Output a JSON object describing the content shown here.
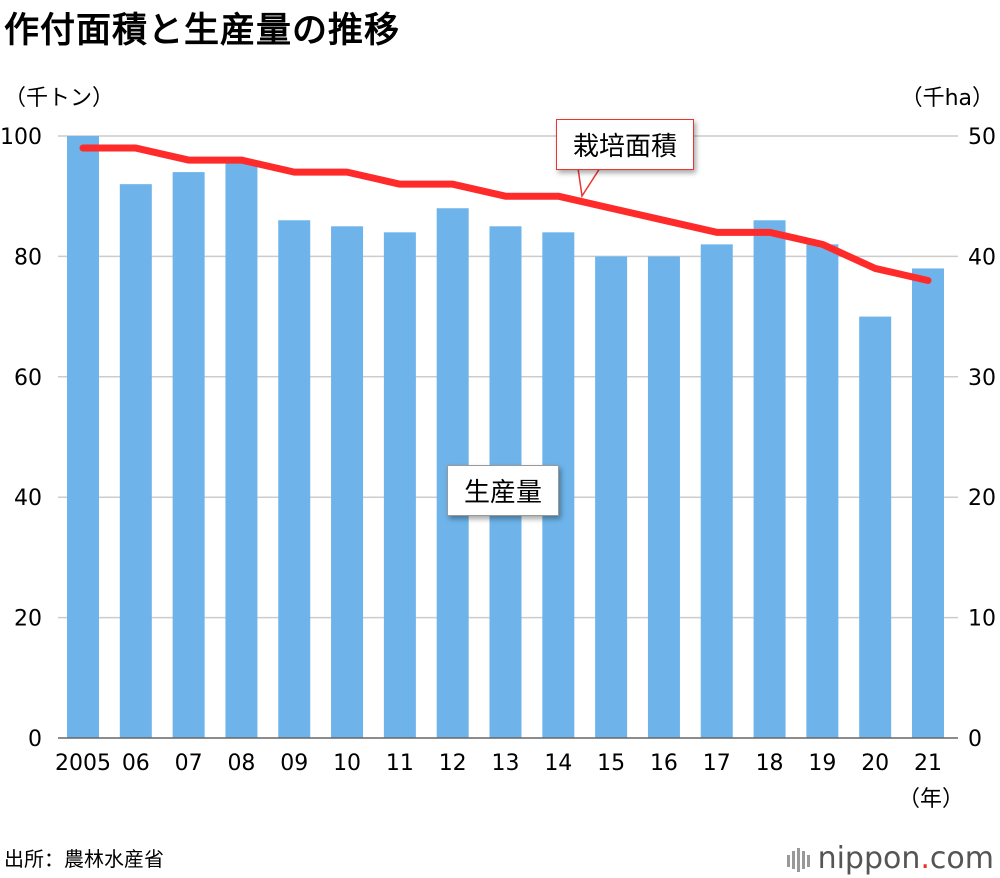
{
  "title": "作付面積と生産量の推移",
  "left_unit": "（千トン）",
  "right_unit": "（千ha）",
  "x_unit": "（年）",
  "source": "出所：農林水産省",
  "brand": {
    "name": "nippon",
    "dot": ".",
    "tld": "com"
  },
  "annotations": {
    "area": "栽培面積",
    "production": "生産量"
  },
  "colors": {
    "bar": "#6eb4ea",
    "line": "#ff2a2a",
    "grid": "#cccccc"
  },
  "chart_data": {
    "type": "bar+line",
    "categories": [
      "2005",
      "06",
      "07",
      "08",
      "09",
      "10",
      "11",
      "12",
      "13",
      "14",
      "15",
      "16",
      "17",
      "18",
      "19",
      "20",
      "21"
    ],
    "series": [
      {
        "name": "生産量",
        "axis": "left",
        "type": "bar",
        "values": [
          100,
          92,
          94,
          96,
          86,
          85,
          84,
          88,
          85,
          84,
          80,
          80,
          82,
          86,
          82,
          70,
          78
        ]
      },
      {
        "name": "栽培面積",
        "axis": "right",
        "type": "line",
        "values": [
          49,
          49,
          48,
          48,
          47,
          47,
          46,
          46,
          45,
          45,
          44,
          43,
          42,
          42,
          41,
          39,
          38
        ]
      }
    ],
    "y_left": {
      "label": "千トン",
      "range": [
        0,
        100
      ],
      "ticks": [
        "0",
        "20",
        "40",
        "60",
        "80",
        "100"
      ]
    },
    "y_right": {
      "label": "千ha",
      "range": [
        0,
        50
      ],
      "ticks": [
        "0",
        "10",
        "20",
        "30",
        "40",
        "50"
      ]
    },
    "grid": true
  }
}
